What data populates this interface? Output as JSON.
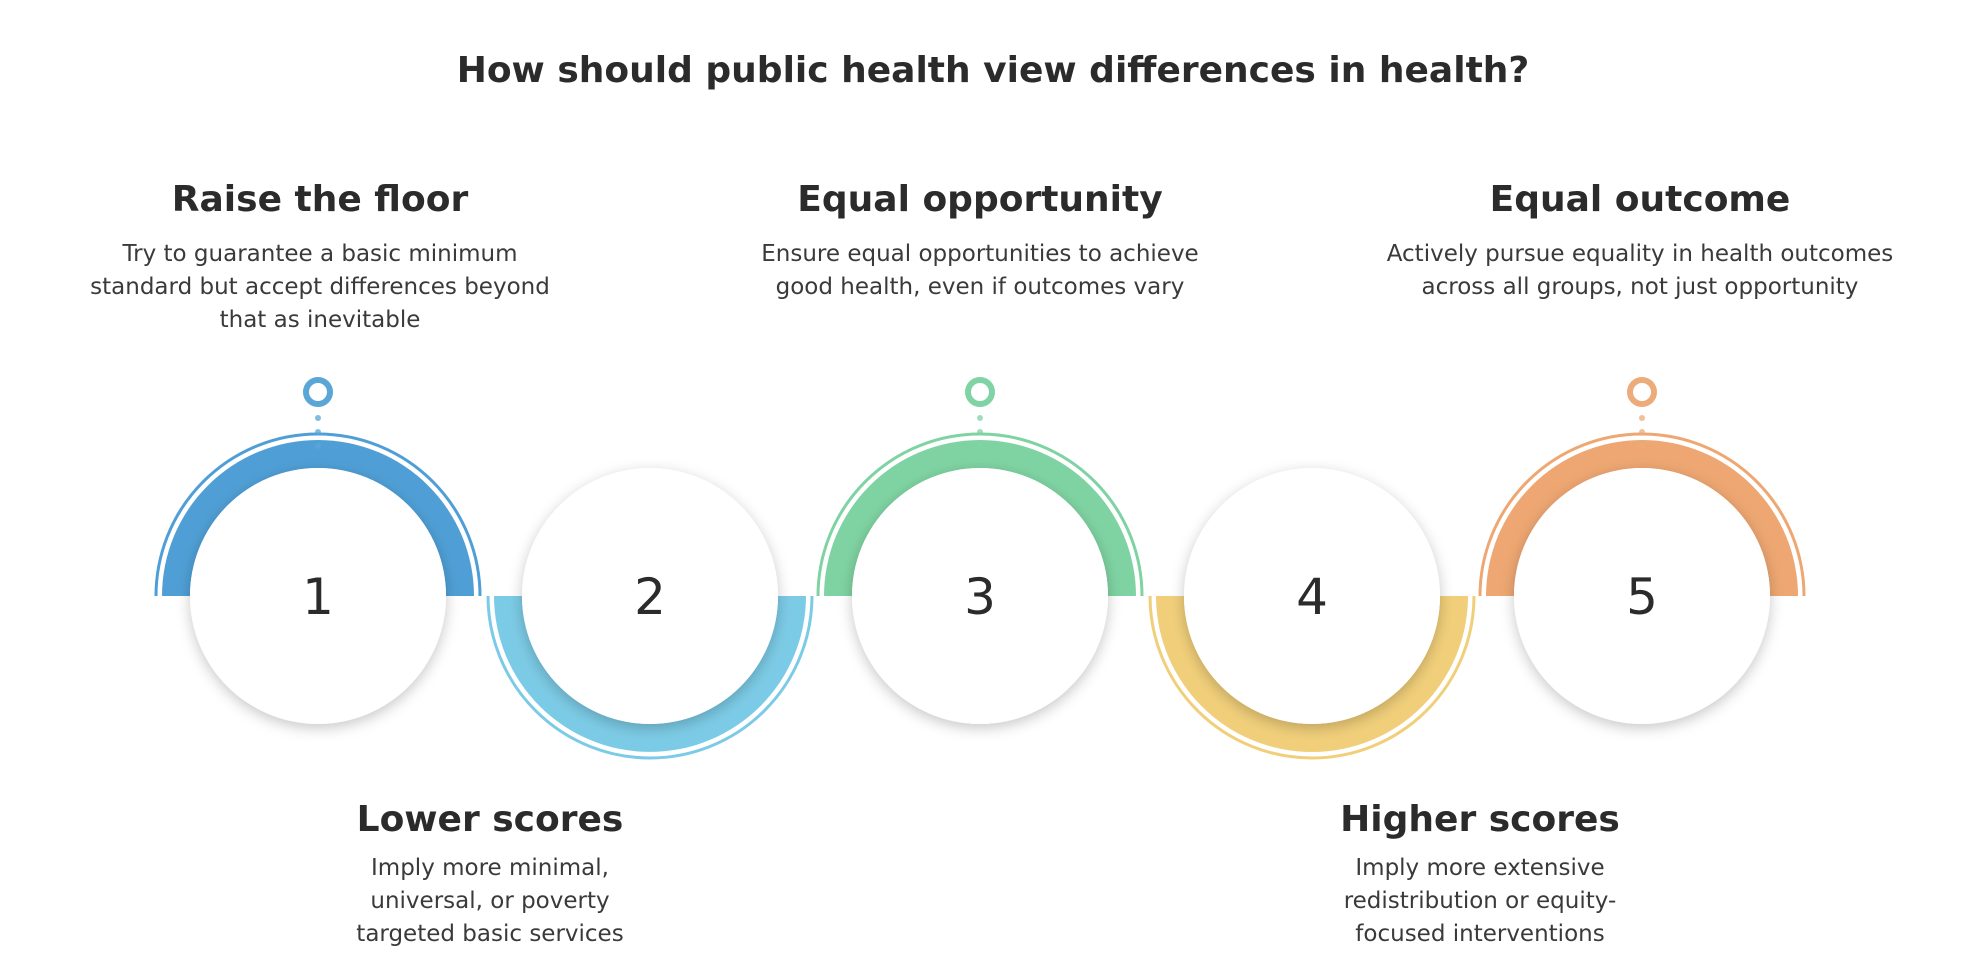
{
  "title": "How should public health view differences in health?",
  "top_blocks": [
    {
      "heading": "Raise the floor",
      "text": [
        "Try to guarantee a basic minimum",
        "standard but accept differences beyond",
        "that as inevitable"
      ],
      "color": "#5aa6d6"
    },
    {
      "heading": "Equal opportunity",
      "text": [
        "Ensure equal opportunities to achieve",
        "good health, even if outcomes vary"
      ],
      "color": "#7fd3a4"
    },
    {
      "heading": "Equal outcome",
      "text": [
        "Actively pursue equality in health outcomes",
        "across all groups, not just opportunity"
      ],
      "color": "#ebab7a"
    }
  ],
  "bottom_blocks": [
    {
      "heading": "Lower scores",
      "text": [
        "Imply more minimal,",
        "universal, or poverty",
        "targeted basic services"
      ]
    },
    {
      "heading": "Higher scores",
      "text": [
        "Imply more extensive",
        "redistribution or equity-",
        "focused interventions"
      ]
    }
  ],
  "circles": [
    {
      "label": "1",
      "color": "#4f9fd6",
      "arc": "bottom"
    },
    {
      "label": "2",
      "color": "#7ccbe6",
      "arc": "top"
    },
    {
      "label": "3",
      "color": "#7fd3a2",
      "arc": "bottom"
    },
    {
      "label": "4",
      "color": "#f1cf7a",
      "arc": "top"
    },
    {
      "label": "5",
      "color": "#eea772",
      "arc": "bottom"
    }
  ]
}
